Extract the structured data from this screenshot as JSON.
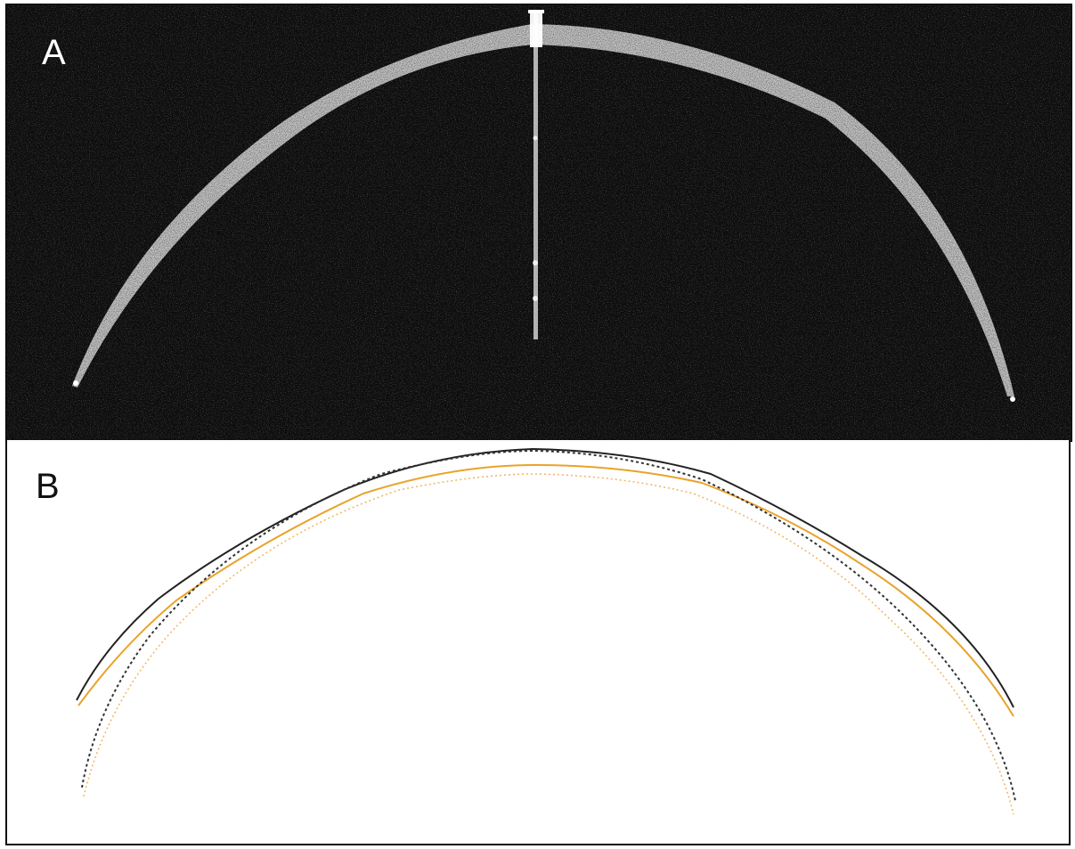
{
  "panels": [
    {
      "label": "A"
    },
    {
      "label": "B"
    }
  ],
  "colors": {
    "scan_background": "#0d0d0d",
    "tissue_band": "#cfcfcf",
    "black_trace": "#222222",
    "orange_trace": "#e9a32a",
    "orange_dotted": "#f1b96a"
  }
}
